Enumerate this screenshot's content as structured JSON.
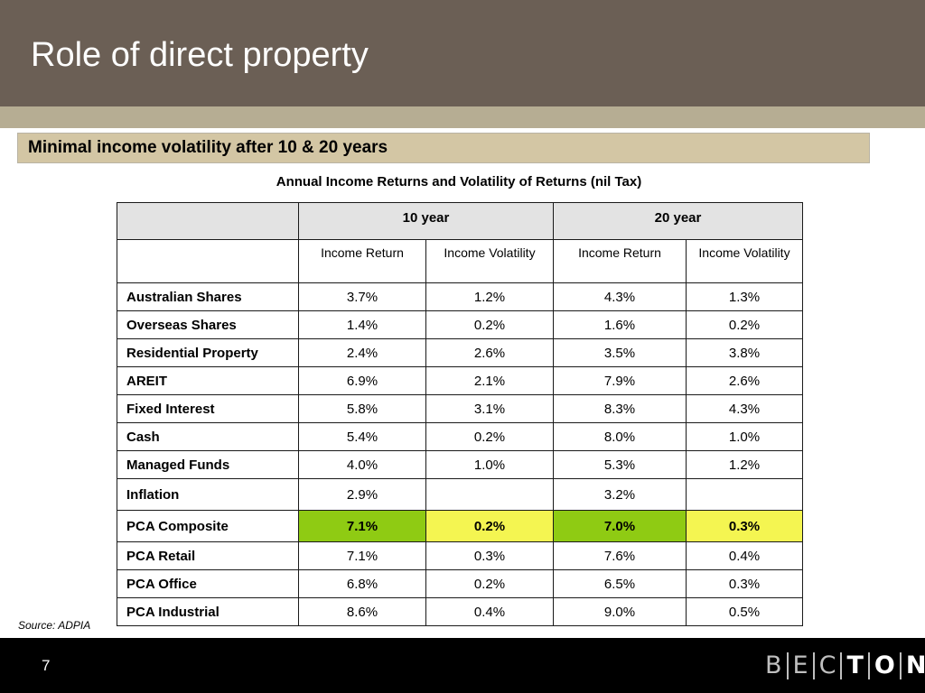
{
  "slide": {
    "title": "Role of direct property",
    "subtitle": "Minimal income volatility after 10 & 20 years",
    "page_number": "7",
    "source": "Source: ADPIA"
  },
  "table": {
    "title": "Annual Income Returns and Volatility of Returns (nil Tax)",
    "group_headers": [
      "10 year",
      "20 year"
    ],
    "sub_headers": [
      "Income Return",
      "Income Volatility",
      "Income Return",
      "Income Volatility"
    ],
    "rows": [
      {
        "label": "Australian Shares",
        "values": [
          "3.7%",
          "1.2%",
          "4.3%",
          "1.3%"
        ]
      },
      {
        "label": "Overseas Shares",
        "values": [
          "1.4%",
          "0.2%",
          "1.6%",
          "0.2%"
        ]
      },
      {
        "label": "Residential Property",
        "values": [
          "2.4%",
          "2.6%",
          "3.5%",
          "3.8%"
        ]
      },
      {
        "label": "AREIT",
        "values": [
          "6.9%",
          "2.1%",
          "7.9%",
          "2.6%"
        ]
      },
      {
        "label": "Fixed Interest",
        "values": [
          "5.8%",
          "3.1%",
          "8.3%",
          "4.3%"
        ]
      },
      {
        "label": "Cash",
        "values": [
          "5.4%",
          "0.2%",
          "8.0%",
          "1.0%"
        ]
      },
      {
        "label": "Managed Funds",
        "values": [
          "4.0%",
          "1.0%",
          "5.3%",
          "1.2%"
        ]
      },
      {
        "label": "Inflation",
        "values": [
          "2.9%",
          "",
          "3.2%",
          ""
        ]
      },
      {
        "label": "PCA Composite",
        "values": [
          "7.1%",
          "0.2%",
          "7.0%",
          "0.3%"
        ]
      },
      {
        "label": "PCA Retail",
        "values": [
          "7.1%",
          "0.3%",
          "7.6%",
          "0.4%"
        ]
      },
      {
        "label": "PCA Office",
        "values": [
          "6.8%",
          "0.2%",
          "6.5%",
          "0.3%"
        ]
      },
      {
        "label": "PCA Industrial",
        "values": [
          "8.6%",
          "0.4%",
          "9.0%",
          "0.5%"
        ]
      }
    ],
    "highlight_colors": {
      "income_return": "#8fcb13",
      "income_volatility": "#f4f551"
    }
  },
  "logo": {
    "letters": [
      "B",
      "E",
      "C",
      "T",
      "O",
      "N"
    ]
  },
  "colors": {
    "title_bar": "#6b5f55",
    "accent_bar": "#b6ad93",
    "subtitle_bg": "#d3c6a4",
    "footer": "#000000"
  }
}
